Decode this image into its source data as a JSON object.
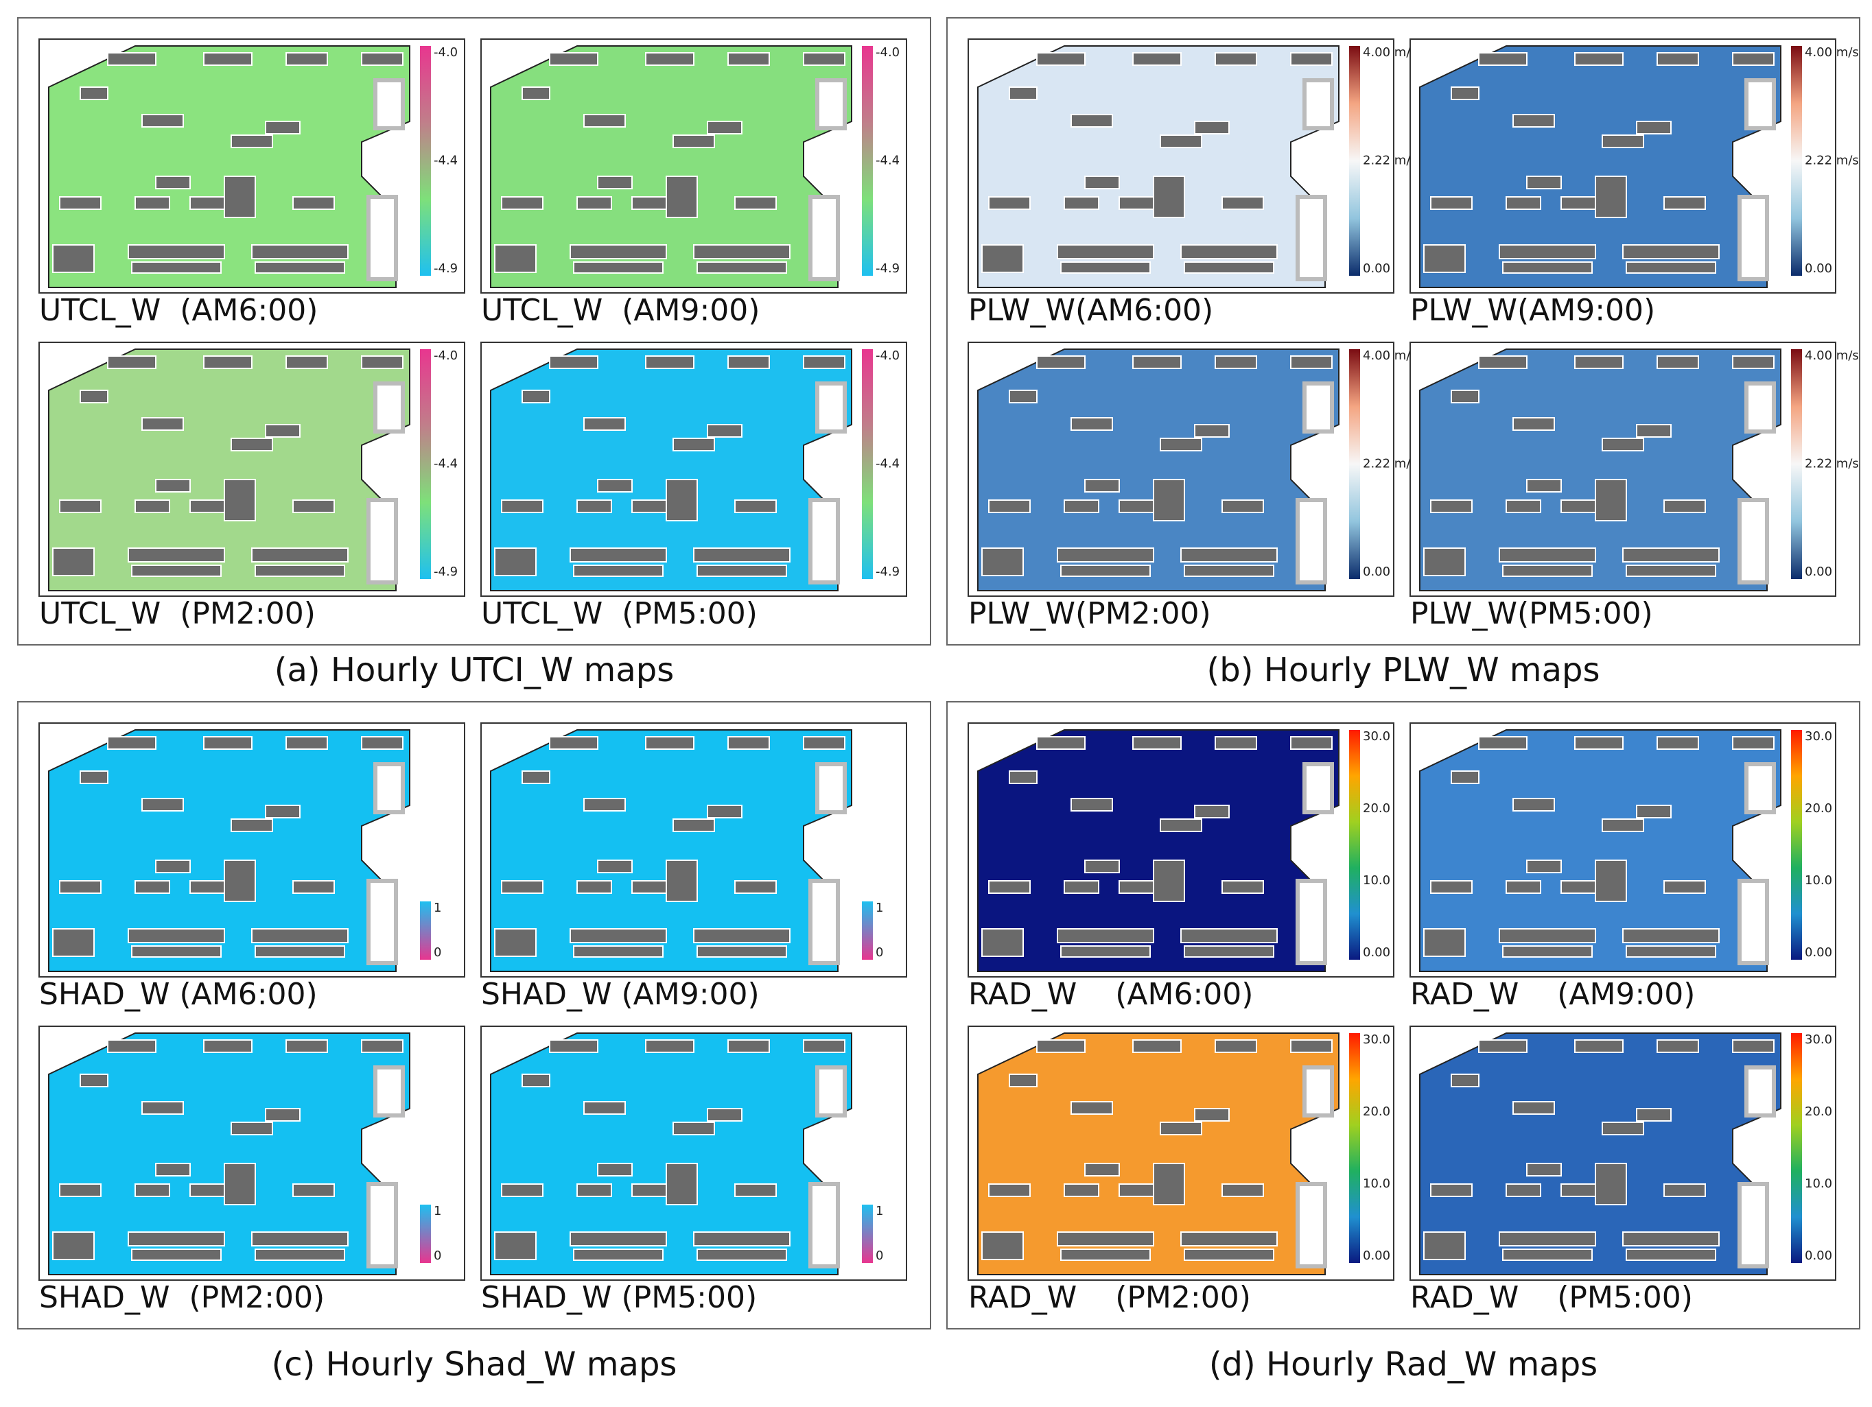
{
  "panels": [
    {
      "caption": "(a) Hourly UTCI_W maps",
      "legend": {
        "labels": [
          "-4.0",
          "-4.4",
          "-4.9"
        ],
        "colors": [
          "#e8368f",
          "#c07f8a",
          "#7ee07a",
          "#1ec0f0"
        ]
      },
      "maps": [
        {
          "label": "UTCL_W  (AM6:00)",
          "color": "#8be37f"
        },
        {
          "label": "UTCL_W  (AM9:00)",
          "color": "#86df7e"
        },
        {
          "label": "UTCL_W  (PM2:00)",
          "color": "#a2d98c"
        },
        {
          "label": "UTCL_W  (PM5:00)",
          "color": "#1dbff0"
        }
      ]
    },
    {
      "caption": "(b) Hourly PLW_W maps",
      "legend": {
        "labels": [
          "4.00 m/s",
          "2.22 m/s",
          "0.00"
        ],
        "colors": [
          "#7a0c12",
          "#f4a582",
          "#f7f7f7",
          "#92c5de",
          "#0b2c6b"
        ]
      },
      "maps": [
        {
          "label": "PLW_W(AM6:00)",
          "color": "#d9e6f3"
        },
        {
          "label": "PLW_W(AM9:00)",
          "color": "#3f7dc0"
        },
        {
          "label": "PLW_W(PM2:00)",
          "color": "#4a86c4"
        },
        {
          "label": "PLW_W(PM5:00)",
          "color": "#4a86c4"
        }
      ]
    },
    {
      "caption": "(c) Hourly Shad_W maps",
      "legend": {
        "labels": [
          "1",
          "0"
        ],
        "colors": [
          "#1ec0f0",
          "#e8368f"
        ]
      },
      "maps": [
        {
          "label": "SHAD_W (AM6:00)",
          "color": "#14c0f2"
        },
        {
          "label": "SHAD_W (AM9:00)",
          "color": "#14c0f2"
        },
        {
          "label": "SHAD_W  (PM2:00)",
          "color": "#14c0f2"
        },
        {
          "label": "SHAD_W (PM5:00)",
          "color": "#14c0f2"
        }
      ]
    },
    {
      "caption": "(d) Hourly Rad_W maps",
      "legend": {
        "labels": [
          "30.0",
          "20.0",
          "10.0",
          "0.00"
        ],
        "colors": [
          "#ff1a00",
          "#ffa500",
          "#a0d020",
          "#20b060",
          "#2090d0",
          "#0a1a80"
        ]
      },
      "maps": [
        {
          "label": "RAD_W    (AM6:00)",
          "color": "#0a1580"
        },
        {
          "label": "RAD_W    (AM9:00)",
          "color": "#3d85cf"
        },
        {
          "label": "RAD_W    (PM2:00)",
          "color": "#f59a2e"
        },
        {
          "label": "RAD_W    (PM5:00)",
          "color": "#2a66b8"
        }
      ]
    }
  ]
}
